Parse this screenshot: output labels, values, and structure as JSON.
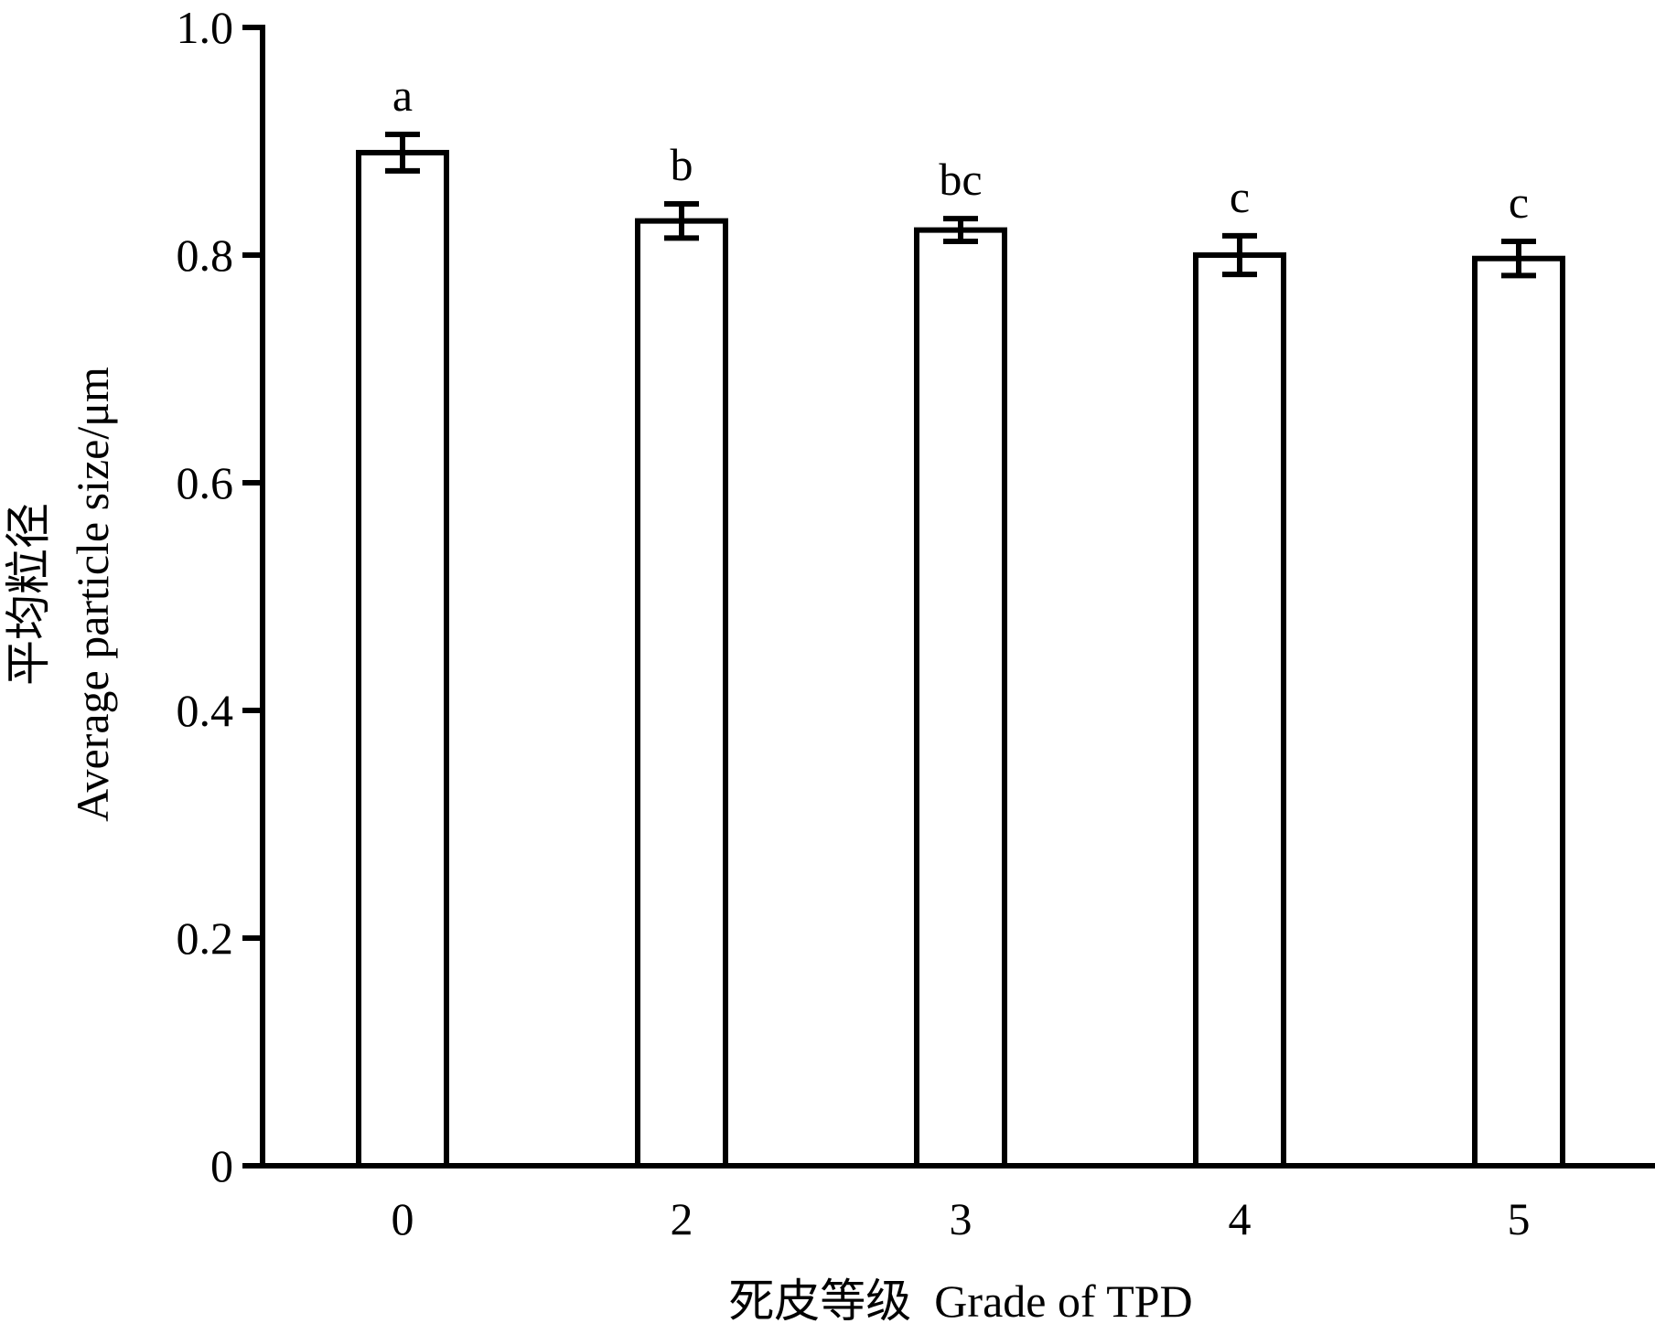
{
  "chart_data": {
    "type": "bar",
    "categories": [
      "0",
      "2",
      "3",
      "4",
      "5"
    ],
    "values": [
      0.89,
      0.83,
      0.822,
      0.8,
      0.797
    ],
    "errors": [
      0.016,
      0.015,
      0.01,
      0.017,
      0.015
    ],
    "significance_labels": [
      "a",
      "b",
      "bc",
      "c",
      "c"
    ],
    "ylabel_cn": "平均粒径",
    "ylabel_en": "Average particle size/μm",
    "xlabel": "死皮等级  Grade of TPD",
    "ylim": [
      0,
      1.0
    ],
    "yticks": [
      "0",
      "0.2",
      "0.4",
      "0.6",
      "0.8",
      "1.0"
    ],
    "ytick_values": [
      0,
      0.2,
      0.4,
      0.6,
      0.8,
      1.0
    ],
    "grid": false,
    "bar_fill": "#ffffff",
    "bar_stroke": "#000000"
  }
}
